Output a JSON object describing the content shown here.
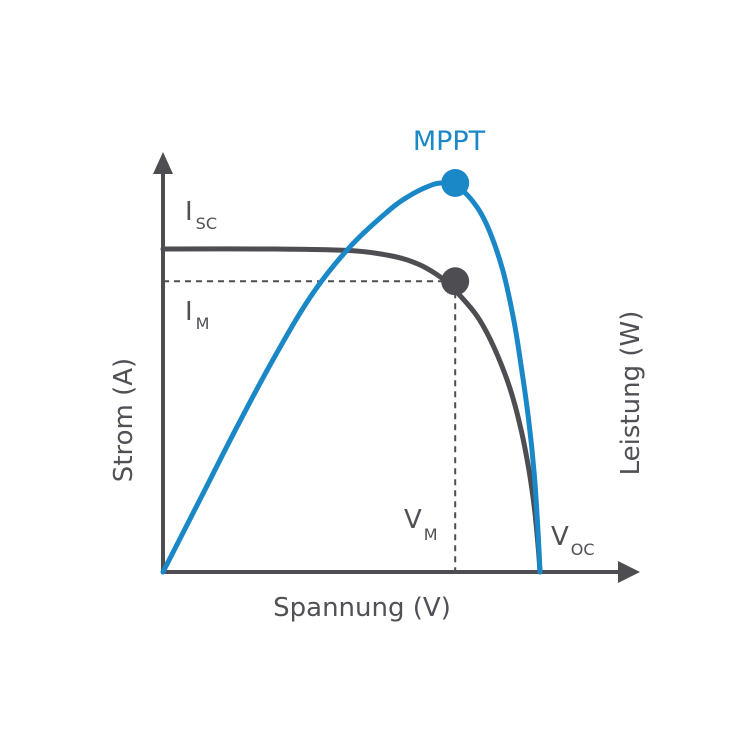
{
  "colors": {
    "current_curve": "#4d4d52",
    "power_curve": "#1a87c7",
    "axis": "#4d4d52",
    "text": "#505055",
    "background": "#ffffff"
  },
  "labels": {
    "mppt": "MPPT",
    "isc": {
      "main": "I",
      "sub": "SC"
    },
    "im": {
      "main": "I",
      "sub": "M"
    },
    "vm": {
      "main": "V",
      "sub": "M"
    },
    "voc": {
      "main": "V",
      "sub": "OC"
    }
  },
  "chart_data": {
    "type": "line",
    "xlabel": "Spannung (V)",
    "ylabel": "Strom (A)",
    "y2label": "Leistung (W)",
    "xlim": [
      0,
      1
    ],
    "ylim": [
      0,
      1
    ],
    "show_tick_labels": false,
    "grid": false,
    "legend": "none",
    "series": [
      {
        "key": "current",
        "x": [
          0,
          0.3,
          0.5,
          0.6,
          0.65,
          0.7,
          0.75,
          0.8,
          0.84,
          0.88,
          0.92,
          0.95,
          0.97,
          0.985,
          0.995,
          1.0
        ],
        "values": [
          1.0,
          1.0,
          0.995,
          0.98,
          0.965,
          0.94,
          0.9,
          0.84,
          0.78,
          0.69,
          0.57,
          0.44,
          0.32,
          0.2,
          0.08,
          0.0
        ]
      },
      {
        "key": "power",
        "x": [
          0,
          0.1,
          0.2,
          0.3,
          0.4,
          0.5,
          0.6,
          0.65,
          0.7,
          0.74,
          0.78,
          0.82,
          0.86,
          0.9,
          0.93,
          0.95,
          0.97,
          0.985,
          0.995,
          1.0
        ],
        "values": [
          0,
          0.19,
          0.38,
          0.56,
          0.72,
          0.84,
          0.93,
          0.965,
          0.99,
          1.0,
          0.99,
          0.955,
          0.89,
          0.78,
          0.65,
          0.53,
          0.39,
          0.25,
          0.1,
          0.0
        ]
      }
    ],
    "points": [
      {
        "key": "mpp_current",
        "x": 0.775,
        "y": 0.9,
        "series": "current"
      },
      {
        "key": "mpp_power",
        "x": 0.775,
        "y": 1.0,
        "series": "power"
      }
    ],
    "reference_lines": [
      {
        "key": "im_line",
        "from": [
          0,
          0.9
        ],
        "to": [
          0.775,
          0.9
        ],
        "style": "dashed"
      },
      {
        "key": "vm_line",
        "from": [
          0.775,
          0.9
        ],
        "to": [
          0.775,
          0
        ],
        "style": "dashed"
      }
    ]
  }
}
